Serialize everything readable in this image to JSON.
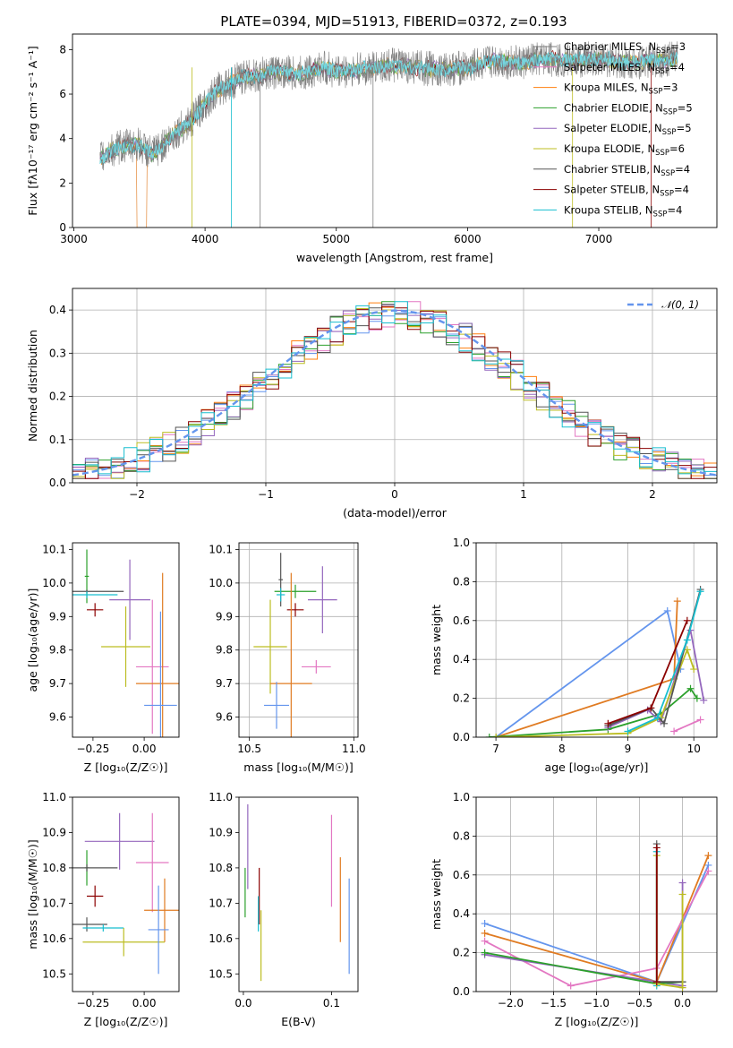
{
  "figure": {
    "title": "PLATE=0394, MJD=51913, FIBERID=0372, z=0.193"
  },
  "colors": {
    "Chabrier MILES": "#7f7f7f",
    "Salpeter MILES": "#e377c2",
    "Kroupa MILES": "#ff7f0e",
    "Chabrier ELODIE": "#2ca02c",
    "Salpeter ELODIE": "#9467bd",
    "Kroupa ELODIE": "#bcbd22",
    "Chabrier STELIB": "#555555",
    "Salpeter STELIB": "#8b0000",
    "Kroupa STELIB": "#17becf",
    "blue": "#6495ed",
    "orange": "#e07b22",
    "gauss": "#6495ed"
  },
  "chart_data": [
    {
      "id": "spectrum",
      "type": "line",
      "xlabel": "wavelength [Angstrom, rest frame]",
      "ylabel": "Flux [fλ10⁻¹⁷ erg cm⁻² s⁻¹ A⁻¹]",
      "xlim": [
        2990,
        7900
      ],
      "ylim": [
        0,
        8.7
      ],
      "xticks": [
        "3000",
        "4000",
        "5000",
        "6000",
        "7000"
      ],
      "yticks": [
        "0",
        "2",
        "4",
        "6",
        "8"
      ],
      "grid": false,
      "legend_position": "top-right",
      "legend": [
        {
          "pre": "Chabrier MILES, N",
          "sub": "SSP",
          "post": "=3",
          "color": "#7f7f7f"
        },
        {
          "pre": "Salpeter MILES, N",
          "sub": "SSP",
          "post": "=4",
          "color": "#e377c2"
        },
        {
          "pre": "Kroupa MILES, N",
          "sub": "SSP",
          "post": "=3",
          "color": "#ff7f0e"
        },
        {
          "pre": "Chabrier ELODIE, N",
          "sub": "SSP",
          "post": "=5",
          "color": "#2ca02c"
        },
        {
          "pre": "Salpeter ELODIE, N",
          "sub": "SSP",
          "post": "=5",
          "color": "#9467bd"
        },
        {
          "pre": "Kroupa ELODIE, N",
          "sub": "SSP",
          "post": "=6",
          "color": "#bcbd22"
        },
        {
          "pre": "Chabrier STELIB, N",
          "sub": "SSP",
          "post": "=4",
          "color": "#555555"
        },
        {
          "pre": "Salpeter STELIB, N",
          "sub": "SSP",
          "post": "=4",
          "color": "#8b0000"
        },
        {
          "pre": "Kroupa STELIB, N",
          "sub": "SSP",
          "post": "=4",
          "color": "#17becf"
        }
      ],
      "data_x": [
        3200,
        3300,
        3400,
        3500,
        3600,
        3700,
        3800,
        3900,
        4000,
        4100,
        4200,
        4300,
        4400,
        4500,
        4600,
        4700,
        4800,
        4900,
        5000,
        5200,
        5400,
        5600,
        5800,
        6000,
        6200,
        6400,
        6600,
        6800,
        7000,
        7200,
        7400,
        7600
      ],
      "data_y": [
        3.1,
        3.5,
        3.7,
        3.7,
        3.3,
        3.8,
        4.4,
        4.8,
        5.6,
        6.2,
        6.5,
        6.8,
        6.8,
        7.0,
        7.0,
        6.9,
        7.0,
        7.2,
        7.0,
        7.1,
        7.3,
        7.2,
        7.1,
        7.2,
        7.5,
        7.4,
        7.6,
        7.5,
        7.6,
        7.4,
        7.5,
        7.6
      ]
    },
    {
      "id": "residuals",
      "type": "line",
      "xlabel": "(data-model)/error",
      "ylabel": "Normed distribution",
      "xlim": [
        -2.5,
        2.5
      ],
      "ylim": [
        0,
        0.45
      ],
      "xticks": [
        "−2",
        "−1",
        "0",
        "1",
        "2"
      ],
      "yticks": [
        "0.0",
        "0.1",
        "0.2",
        "0.3",
        "0.4"
      ],
      "grid": true,
      "legend_position": "top-right",
      "legend_label": "𝒩(0, 1)",
      "bin_width": 0.1,
      "series": [
        {
          "color": "#6495ed",
          "values": [
            0.05,
            0.05,
            0.06,
            0.07,
            0.07,
            0.08,
            0.09,
            0.1,
            0.11,
            0.12,
            0.14,
            0.15,
            0.17,
            0.18,
            0.2,
            0.21,
            0.23,
            0.24,
            0.26,
            0.27,
            0.29,
            0.3,
            0.32,
            0.33,
            0.35,
            0.36,
            0.37,
            0.38,
            0.39,
            0.39,
            0.4,
            0.39,
            0.39,
            0.38,
            0.37,
            0.36,
            0.35,
            0.33,
            0.32,
            0.3,
            0.29,
            0.27,
            0.26,
            0.24,
            0.23,
            0.21,
            0.2,
            0.18,
            0.17,
            0.15
          ]
        }
      ]
    },
    {
      "id": "age-vs-Z",
      "type": "scatter",
      "xlabel": "Z [log₁₀(Z/Z☉)]",
      "ylabel": "age  [log₁₀(age/yr)]",
      "xlim": [
        -0.35,
        0.17
      ],
      "ylim": [
        9.54,
        10.12
      ],
      "xticks": [
        "−0.25",
        "0.00"
      ],
      "yticks": [
        "9.6",
        "9.7",
        "9.8",
        "9.9",
        "10.0",
        "10.1"
      ],
      "grid": false,
      "points": [
        {
          "x": -0.28,
          "y": 10.02,
          "xerr": 0.01,
          "yerr": 0.08,
          "color": "#2ca02c"
        },
        {
          "x": -0.28,
          "y": 9.975,
          "xerr": 0.18,
          "yerr": 0.005,
          "color": "#555555"
        },
        {
          "x": -0.28,
          "y": 9.965,
          "xerr": 0.15,
          "yerr": 0.01,
          "color": "#17becf"
        },
        {
          "x": -0.24,
          "y": 9.92,
          "xerr": 0.04,
          "yerr": 0.02,
          "color": "#8b0000"
        },
        {
          "x": -0.07,
          "y": 9.95,
          "xerr": 0.1,
          "yerr": 0.12,
          "color": "#9467bd"
        },
        {
          "x": -0.09,
          "y": 9.81,
          "xerr": 0.12,
          "yerr": 0.12,
          "color": "#bcbd22"
        },
        {
          "x": 0.04,
          "y": 9.75,
          "xerr": 0.08,
          "yerr": 0.2,
          "color": "#e377c2"
        },
        {
          "x": 0.09,
          "y": 9.7,
          "xerr": 0.13,
          "yerr": 0.33,
          "color": "#e07b22"
        },
        {
          "x": 0.08,
          "y": 9.635,
          "xerr": 0.08,
          "yerr": 0.28,
          "color": "#6495ed"
        }
      ]
    },
    {
      "id": "age-vs-mass",
      "type": "scatter",
      "xlabel": "mass [log₁₀(M/M☉)]",
      "ylabel": "",
      "xlim": [
        10.45,
        11.02
      ],
      "ylim": [
        9.54,
        10.12
      ],
      "xticks": [
        "10.5",
        "11.0"
      ],
      "yticks": [
        "9.6",
        "9.7",
        "9.8",
        "9.9",
        "10.0",
        "10.1"
      ],
      "grid": true,
      "points": [
        {
          "x": 10.65,
          "y": 10.01,
          "xerr": 0.01,
          "yerr": 0.08,
          "color": "#555555"
        },
        {
          "x": 10.72,
          "y": 9.975,
          "xerr": 0.1,
          "yerr": 0.02,
          "color": "#2ca02c"
        },
        {
          "x": 10.65,
          "y": 9.965,
          "xerr": 0.02,
          "yerr": 0.02,
          "color": "#17becf"
        },
        {
          "x": 10.72,
          "y": 9.92,
          "xerr": 0.04,
          "yerr": 0.02,
          "color": "#8b0000"
        },
        {
          "x": 10.85,
          "y": 9.95,
          "xerr": 0.07,
          "yerr": 0.1,
          "color": "#9467bd"
        },
        {
          "x": 10.6,
          "y": 9.81,
          "xerr": 0.08,
          "yerr": 0.14,
          "color": "#bcbd22"
        },
        {
          "x": 10.82,
          "y": 9.75,
          "xerr": 0.07,
          "yerr": 0.02,
          "color": "#e377c2"
        },
        {
          "x": 10.7,
          "y": 9.7,
          "xerr": 0.1,
          "yerr": 0.33,
          "color": "#e07b22"
        },
        {
          "x": 10.63,
          "y": 9.635,
          "xerr": 0.06,
          "yerr": 0.07,
          "color": "#6495ed"
        }
      ]
    },
    {
      "id": "mass-weight-vs-age",
      "type": "line",
      "xlabel": "age  [log₁₀(age/yr)]",
      "ylabel": "mass weight",
      "xlim": [
        6.7,
        10.35
      ],
      "ylim": [
        0,
        1
      ],
      "xticks": [
        "7",
        "8",
        "9",
        "10"
      ],
      "yticks": [
        "0.0",
        "0.2",
        "0.4",
        "0.6",
        "0.8",
        "1.0"
      ],
      "grid": true,
      "series": [
        {
          "color": "#6495ed",
          "x": [
            7.0,
            9.6,
            9.8
          ],
          "y": [
            0.0,
            0.65,
            0.35
          ]
        },
        {
          "color": "#e07b22",
          "x": [
            7.0,
            9.7,
            9.75
          ],
          "y": [
            0.0,
            0.3,
            0.7
          ]
        },
        {
          "color": "#2ca02c",
          "x": [
            6.9,
            8.7,
            9.5,
            9.95,
            10.05
          ],
          "y": [
            0.0,
            0.04,
            0.12,
            0.25,
            0.2
          ]
        },
        {
          "color": "#9467bd",
          "x": [
            8.7,
            9.3,
            9.5,
            9.95,
            10.15
          ],
          "y": [
            0.05,
            0.14,
            0.08,
            0.55,
            0.19
          ]
        },
        {
          "color": "#bcbd22",
          "x": [
            7.0,
            9.0,
            9.5,
            9.9,
            10.0
          ],
          "y": [
            0.0,
            0.02,
            0.1,
            0.45,
            0.35
          ]
        },
        {
          "color": "#555555",
          "x": [
            8.7,
            9.35,
            9.55,
            10.1
          ],
          "y": [
            0.06,
            0.15,
            0.07,
            0.76
          ]
        },
        {
          "color": "#8b0000",
          "x": [
            8.7,
            9.35,
            9.9
          ],
          "y": [
            0.07,
            0.15,
            0.6
          ]
        },
        {
          "color": "#17becf",
          "x": [
            9.0,
            9.45,
            9.9,
            10.1
          ],
          "y": [
            0.03,
            0.1,
            0.5,
            0.75
          ]
        },
        {
          "color": "#e377c2",
          "x": [
            9.7,
            10.1
          ],
          "y": [
            0.03,
            0.09
          ]
        }
      ]
    },
    {
      "id": "mass-vs-Z",
      "type": "scatter",
      "xlabel": "Z [log₁₀(Z/Z☉)]",
      "ylabel": "mass [log₁₀(M/M☉)]",
      "xlim": [
        -0.35,
        0.17
      ],
      "ylim": [
        10.45,
        11.0
      ],
      "xticks": [
        "−0.25",
        "0.00"
      ],
      "yticks": [
        "10.5",
        "10.6",
        "10.7",
        "10.8",
        "10.9",
        "11.0"
      ],
      "grid": false,
      "points": [
        {
          "x": -0.12,
          "y": 10.875,
          "xerr": 0.17,
          "yerr": 0.08,
          "color": "#9467bd"
        },
        {
          "x": -0.28,
          "y": 10.8,
          "xerr": 0.01,
          "yerr": 0.05,
          "color": "#2ca02c"
        },
        {
          "x": -0.28,
          "y": 10.8,
          "xerr": 0.15,
          "yerr": 0.01,
          "color": "#555555"
        },
        {
          "x": -0.24,
          "y": 10.72,
          "xerr": 0.04,
          "yerr": 0.03,
          "color": "#8b0000"
        },
        {
          "x": 0.04,
          "y": 10.815,
          "xerr": 0.08,
          "yerr": 0.14,
          "color": "#e377c2"
        },
        {
          "x": 0.1,
          "y": 10.68,
          "xerr": 0.1,
          "yerr": 0.09,
          "color": "#e07b22"
        },
        {
          "x": -0.28,
          "y": 10.64,
          "xerr": 0.1,
          "yerr": 0.02,
          "color": "#555555"
        },
        {
          "x": -0.2,
          "y": 10.63,
          "xerr": 0.1,
          "yerr": 0.01,
          "color": "#17becf"
        },
        {
          "x": -0.1,
          "y": 10.59,
          "xerr": 0.2,
          "yerr": 0.04,
          "color": "#bcbd22"
        },
        {
          "x": 0.07,
          "y": 10.625,
          "xerr": 0.05,
          "yerr": 0.125,
          "color": "#6495ed"
        }
      ]
    },
    {
      "id": "mass-vs-EBV",
      "type": "scatter",
      "xlabel": "E(B-V)",
      "ylabel": "",
      "xlim": [
        -0.005,
        0.13
      ],
      "ylim": [
        10.45,
        11.0
      ],
      "xticks": [
        "0.0",
        "0.1"
      ],
      "yticks": [
        "10.5",
        "10.6",
        "10.7",
        "10.8",
        "10.9",
        "11.0"
      ],
      "grid": false,
      "points": [
        {
          "x": 0.005,
          "y": 10.86,
          "xerr": 0.0,
          "yerr": 0.12,
          "color": "#9467bd"
        },
        {
          "x": 0.002,
          "y": 10.73,
          "xerr": 0.0,
          "yerr": 0.07,
          "color": "#2ca02c"
        },
        {
          "x": 0.018,
          "y": 10.72,
          "xerr": 0.0,
          "yerr": 0.08,
          "color": "#8b0000"
        },
        {
          "x": 0.017,
          "y": 10.67,
          "xerr": 0.0,
          "yerr": 0.05,
          "color": "#17becf"
        },
        {
          "x": 0.02,
          "y": 10.58,
          "xerr": 0.0,
          "yerr": 0.1,
          "color": "#bcbd22"
        },
        {
          "x": 0.1,
          "y": 10.82,
          "xerr": 0.0,
          "yerr": 0.13,
          "color": "#e377c2"
        },
        {
          "x": 0.11,
          "y": 10.71,
          "xerr": 0.0,
          "yerr": 0.12,
          "color": "#e07b22"
        },
        {
          "x": 0.12,
          "y": 10.635,
          "xerr": 0.0,
          "yerr": 0.135,
          "color": "#6495ed"
        }
      ]
    },
    {
      "id": "mass-weight-vs-Z",
      "type": "line",
      "xlabel": "Z [log₁₀(Z/Z☉)]",
      "ylabel": "mass weight",
      "xlim": [
        -2.4,
        0.4
      ],
      "ylim": [
        0,
        1
      ],
      "xticks": [
        "−2.0",
        "−1.5",
        "−1.0",
        "−0.5",
        "0.0"
      ],
      "yticks": [
        "0.0",
        "0.2",
        "0.4",
        "0.6",
        "0.8",
        "1.0"
      ],
      "grid": true,
      "series": [
        {
          "color": "#6495ed",
          "x": [
            -2.3,
            -0.3,
            0.3
          ],
          "y": [
            0.35,
            0.05,
            0.65
          ]
        },
        {
          "color": "#e07b22",
          "x": [
            -2.3,
            -0.3,
            0.3
          ],
          "y": [
            0.3,
            0.05,
            0.7
          ]
        },
        {
          "color": "#e377c2",
          "x": [
            -2.3,
            -1.3,
            -0.3,
            0.3
          ],
          "y": [
            0.26,
            0.03,
            0.12,
            0.62
          ]
        },
        {
          "color": "#9467bd",
          "x": [
            -2.3,
            -0.3,
            0.0,
            0.0
          ],
          "y": [
            0.19,
            0.05,
            0.03,
            0.56
          ]
        },
        {
          "color": "#2ca02c",
          "x": [
            -2.3,
            -0.3,
            0.0
          ],
          "y": [
            0.2,
            0.04,
            0.05
          ]
        },
        {
          "color": "#555555",
          "x": [
            -0.3,
            -0.3,
            0.0
          ],
          "y": [
            0.76,
            0.05,
            0.05
          ]
        },
        {
          "color": "#17becf",
          "x": [
            -0.3,
            -0.3
          ],
          "y": [
            0.72,
            0.03
          ]
        },
        {
          "color": "#bcbd22",
          "x": [
            -0.3,
            -0.3,
            0.0,
            0.0
          ],
          "y": [
            0.7,
            0.04,
            0.02,
            0.5
          ]
        },
        {
          "color": "#8b0000",
          "x": [
            -0.3,
            -0.3
          ],
          "y": [
            0.74,
            0.05
          ]
        }
      ]
    }
  ]
}
